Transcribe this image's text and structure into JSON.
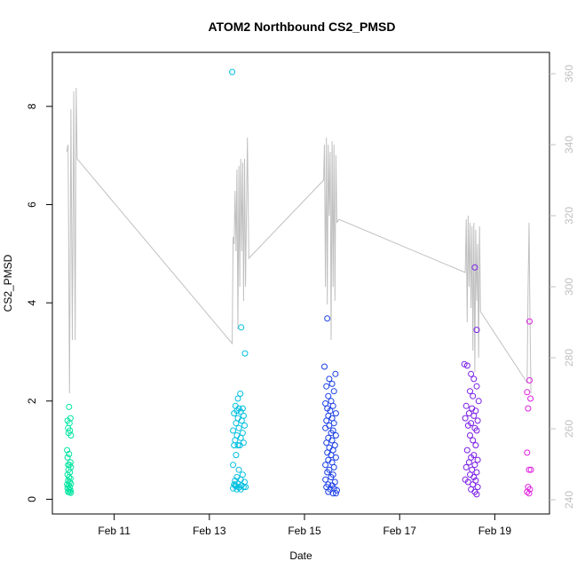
{
  "chart_data": {
    "type": "scatter",
    "title": "ATOM2 Northbound CS2_PMSD",
    "xlabel": "Date",
    "ylabel": "CS2_PMSD",
    "x_ticks": [
      "Feb 11",
      "Feb 13",
      "Feb 15",
      "Feb 17",
      "Feb 19"
    ],
    "x_tick_values": [
      11,
      13,
      15,
      17,
      19
    ],
    "xlim": [
      9.7,
      20.15
    ],
    "y_ticks": [
      0,
      2,
      4,
      6,
      8
    ],
    "ylim": [
      -0.3,
      9.1
    ],
    "y2_ticks": [
      240,
      260,
      280,
      300,
      320,
      340,
      360
    ],
    "y2lim": [
      236,
      366
    ],
    "grid": false,
    "legend": "none",
    "scatter_colors": {
      "feb10": "#00e5a0",
      "feb13": "#00bfe0",
      "feb15": "#1a3ee6",
      "feb18": "#7a1ee6",
      "feb19": "#e020e0"
    },
    "line_color": "#c0c0c0",
    "series": [
      {
        "color_key": "feb10",
        "points": [
          [
            10.05,
            1.88
          ],
          [
            10.08,
            1.65
          ],
          [
            10.02,
            1.6
          ],
          [
            10.06,
            1.55
          ],
          [
            10.03,
            1.45
          ],
          [
            10.07,
            1.4
          ],
          [
            10.04,
            1.35
          ],
          [
            10.09,
            1.3
          ],
          [
            10.01,
            1.0
          ],
          [
            10.05,
            0.92
          ],
          [
            10.02,
            0.85
          ],
          [
            10.08,
            0.75
          ],
          [
            10.03,
            0.7
          ],
          [
            10.06,
            0.7
          ],
          [
            10.09,
            0.65
          ],
          [
            10.04,
            0.6
          ],
          [
            10.07,
            0.55
          ],
          [
            10.02,
            0.5
          ],
          [
            10.05,
            0.45
          ],
          [
            10.08,
            0.42
          ],
          [
            10.03,
            0.38
          ],
          [
            10.06,
            0.35
          ],
          [
            10.09,
            0.32
          ],
          [
            10.01,
            0.3
          ],
          [
            10.04,
            0.28
          ],
          [
            10.07,
            0.25
          ],
          [
            10.02,
            0.22
          ],
          [
            10.05,
            0.2
          ],
          [
            10.08,
            0.18
          ],
          [
            10.03,
            0.15
          ],
          [
            10.06,
            0.14
          ],
          [
            10.09,
            0.13
          ]
        ]
      },
      {
        "color_key": "feb13",
        "points": [
          [
            13.48,
            8.7
          ],
          [
            13.67,
            3.5
          ],
          [
            13.75,
            2.97
          ],
          [
            13.65,
            2.15
          ],
          [
            13.6,
            2.05
          ],
          [
            13.55,
            1.9
          ],
          [
            13.62,
            1.85
          ],
          [
            13.7,
            1.85
          ],
          [
            13.58,
            1.8
          ],
          [
            13.66,
            1.78
          ],
          [
            13.52,
            1.75
          ],
          [
            13.72,
            1.7
          ],
          [
            13.6,
            1.65
          ],
          [
            13.68,
            1.6
          ],
          [
            13.56,
            1.55
          ],
          [
            13.74,
            1.5
          ],
          [
            13.62,
            1.45
          ],
          [
            13.5,
            1.4
          ],
          [
            13.7,
            1.35
          ],
          [
            13.58,
            1.3
          ],
          [
            13.66,
            1.25
          ],
          [
            13.54,
            1.2
          ],
          [
            13.72,
            1.15
          ],
          [
            13.6,
            1.1
          ],
          [
            13.52,
            1.1
          ],
          [
            13.64,
            1.1
          ],
          [
            13.56,
            0.9
          ],
          [
            13.5,
            0.7
          ],
          [
            13.62,
            0.6
          ],
          [
            13.7,
            0.5
          ],
          [
            13.58,
            0.45
          ],
          [
            13.66,
            0.4
          ],
          [
            13.54,
            0.38
          ],
          [
            13.74,
            0.35
          ],
          [
            13.6,
            0.32
          ],
          [
            13.52,
            0.3
          ],
          [
            13.68,
            0.28
          ],
          [
            13.56,
            0.27
          ],
          [
            13.72,
            0.25
          ],
          [
            13.62,
            0.24
          ],
          [
            13.5,
            0.22
          ],
          [
            13.66,
            0.2
          ],
          [
            13.58,
            0.2
          ],
          [
            13.76,
            0.25
          ],
          [
            13.54,
            0.28
          ]
        ]
      },
      {
        "color_key": "feb15",
        "points": [
          [
            15.48,
            3.68
          ],
          [
            15.42,
            2.7
          ],
          [
            15.65,
            2.55
          ],
          [
            15.52,
            2.45
          ],
          [
            15.58,
            2.35
          ],
          [
            15.46,
            2.3
          ],
          [
            15.62,
            2.2
          ],
          [
            15.5,
            2.1
          ],
          [
            15.56,
            2.0
          ],
          [
            15.44,
            1.95
          ],
          [
            15.6,
            1.9
          ],
          [
            15.48,
            1.85
          ],
          [
            15.54,
            1.8
          ],
          [
            15.66,
            1.75
          ],
          [
            15.5,
            1.7
          ],
          [
            15.58,
            1.65
          ],
          [
            15.46,
            1.6
          ],
          [
            15.62,
            1.55
          ],
          [
            15.52,
            1.5
          ],
          [
            15.44,
            1.45
          ],
          [
            15.6,
            1.4
          ],
          [
            15.56,
            1.35
          ],
          [
            15.66,
            1.3
          ],
          [
            15.5,
            1.25
          ],
          [
            15.58,
            1.2
          ],
          [
            15.46,
            1.15
          ],
          [
            15.64,
            1.1
          ],
          [
            15.52,
            1.05
          ],
          [
            15.6,
            1.0
          ],
          [
            15.48,
            0.95
          ],
          [
            15.56,
            0.9
          ],
          [
            15.66,
            0.85
          ],
          [
            15.5,
            0.8
          ],
          [
            15.58,
            0.75
          ],
          [
            15.44,
            0.7
          ],
          [
            15.62,
            0.65
          ],
          [
            15.52,
            0.6
          ],
          [
            15.48,
            0.55
          ],
          [
            15.6,
            0.5
          ],
          [
            15.56,
            0.45
          ],
          [
            15.44,
            0.4
          ],
          [
            15.64,
            0.35
          ],
          [
            15.5,
            0.3
          ],
          [
            15.58,
            0.28
          ],
          [
            15.46,
            0.25
          ],
          [
            15.62,
            0.22
          ],
          [
            15.54,
            0.2
          ],
          [
            15.68,
            0.18
          ],
          [
            15.5,
            0.15
          ],
          [
            15.6,
            0.12
          ],
          [
            15.66,
            0.12
          ]
        ]
      },
      {
        "color_key": "feb18",
        "points": [
          [
            18.58,
            4.72
          ],
          [
            18.62,
            3.45
          ],
          [
            18.36,
            2.75
          ],
          [
            18.42,
            2.72
          ],
          [
            18.5,
            2.55
          ],
          [
            18.56,
            2.45
          ],
          [
            18.62,
            2.3
          ],
          [
            18.48,
            2.2
          ],
          [
            18.54,
            2.1
          ],
          [
            18.66,
            2.0
          ],
          [
            18.4,
            1.9
          ],
          [
            18.52,
            1.85
          ],
          [
            18.6,
            1.8
          ],
          [
            18.46,
            1.75
          ],
          [
            18.56,
            1.7
          ],
          [
            18.38,
            1.65
          ],
          [
            18.64,
            1.6
          ],
          [
            18.5,
            1.55
          ],
          [
            18.44,
            1.5
          ],
          [
            18.58,
            1.45
          ],
          [
            18.62,
            1.4
          ],
          [
            18.48,
            1.3
          ],
          [
            18.54,
            1.2
          ],
          [
            18.6,
            1.1
          ],
          [
            18.42,
            1.0
          ],
          [
            18.56,
            0.9
          ],
          [
            18.5,
            0.85
          ],
          [
            18.64,
            0.8
          ],
          [
            18.46,
            0.75
          ],
          [
            18.58,
            0.7
          ],
          [
            18.4,
            0.65
          ],
          [
            18.52,
            0.6
          ],
          [
            18.62,
            0.55
          ],
          [
            18.48,
            0.5
          ],
          [
            18.56,
            0.45
          ],
          [
            18.38,
            0.4
          ],
          [
            18.6,
            0.38
          ],
          [
            18.44,
            0.35
          ],
          [
            18.54,
            0.3
          ],
          [
            18.64,
            0.25
          ],
          [
            18.5,
            0.2
          ],
          [
            18.58,
            0.15
          ],
          [
            18.62,
            0.1
          ]
        ]
      },
      {
        "color_key": "feb19",
        "points": [
          [
            19.73,
            3.62
          ],
          [
            19.73,
            2.42
          ],
          [
            19.68,
            2.18
          ],
          [
            19.75,
            2.05
          ],
          [
            19.7,
            1.85
          ],
          [
            19.68,
            0.95
          ],
          [
            19.72,
            0.6
          ],
          [
            19.76,
            0.6
          ],
          [
            19.7,
            0.25
          ],
          [
            19.74,
            0.2
          ],
          [
            19.68,
            0.15
          ],
          [
            19.72,
            0.12
          ]
        ]
      }
    ],
    "line_series": {
      "axis": "right",
      "points": [
        [
          10.0,
          338
        ],
        [
          10.03,
          340
        ],
        [
          10.06,
          270
        ],
        [
          10.09,
          350
        ],
        [
          10.12,
          285
        ],
        [
          10.15,
          355
        ],
        [
          10.18,
          285
        ],
        [
          10.2,
          356
        ],
        [
          10.22,
          336
        ],
        [
          13.48,
          284
        ],
        [
          13.5,
          314
        ],
        [
          13.52,
          312
        ],
        [
          13.54,
          327
        ],
        [
          13.56,
          310
        ],
        [
          13.58,
          333
        ],
        [
          13.6,
          288
        ],
        [
          13.62,
          334
        ],
        [
          13.64,
          300
        ],
        [
          13.66,
          336
        ],
        [
          13.68,
          310
        ],
        [
          13.7,
          335
        ],
        [
          13.72,
          296
        ],
        [
          13.74,
          336
        ],
        [
          13.76,
          300
        ],
        [
          13.8,
          342
        ],
        [
          13.83,
          308
        ],
        [
          15.4,
          330
        ],
        [
          15.42,
          340
        ],
        [
          15.44,
          300
        ],
        [
          15.46,
          342
        ],
        [
          15.48,
          295
        ],
        [
          15.5,
          340
        ],
        [
          15.52,
          320
        ],
        [
          15.54,
          338
        ],
        [
          15.56,
          285
        ],
        [
          15.58,
          341
        ],
        [
          15.6,
          300
        ],
        [
          15.62,
          340
        ],
        [
          15.64,
          296
        ],
        [
          15.66,
          337
        ],
        [
          15.68,
          318
        ],
        [
          15.72,
          319
        ],
        [
          18.38,
          304
        ],
        [
          18.4,
          319
        ],
        [
          18.42,
          290
        ],
        [
          18.44,
          320
        ],
        [
          18.46,
          300
        ],
        [
          18.48,
          318
        ],
        [
          18.5,
          294
        ],
        [
          18.52,
          317
        ],
        [
          18.54,
          282
        ],
        [
          18.56,
          318
        ],
        [
          18.58,
          276
        ],
        [
          18.6,
          316
        ],
        [
          18.62,
          296
        ],
        [
          18.64,
          312
        ],
        [
          18.66,
          280
        ],
        [
          18.68,
          317
        ],
        [
          18.7,
          293
        ],
        [
          19.68,
          273
        ],
        [
          19.7,
          300
        ],
        [
          19.72,
          318
        ],
        [
          19.74,
          292
        ],
        [
          19.76,
          270
        ]
      ]
    }
  }
}
